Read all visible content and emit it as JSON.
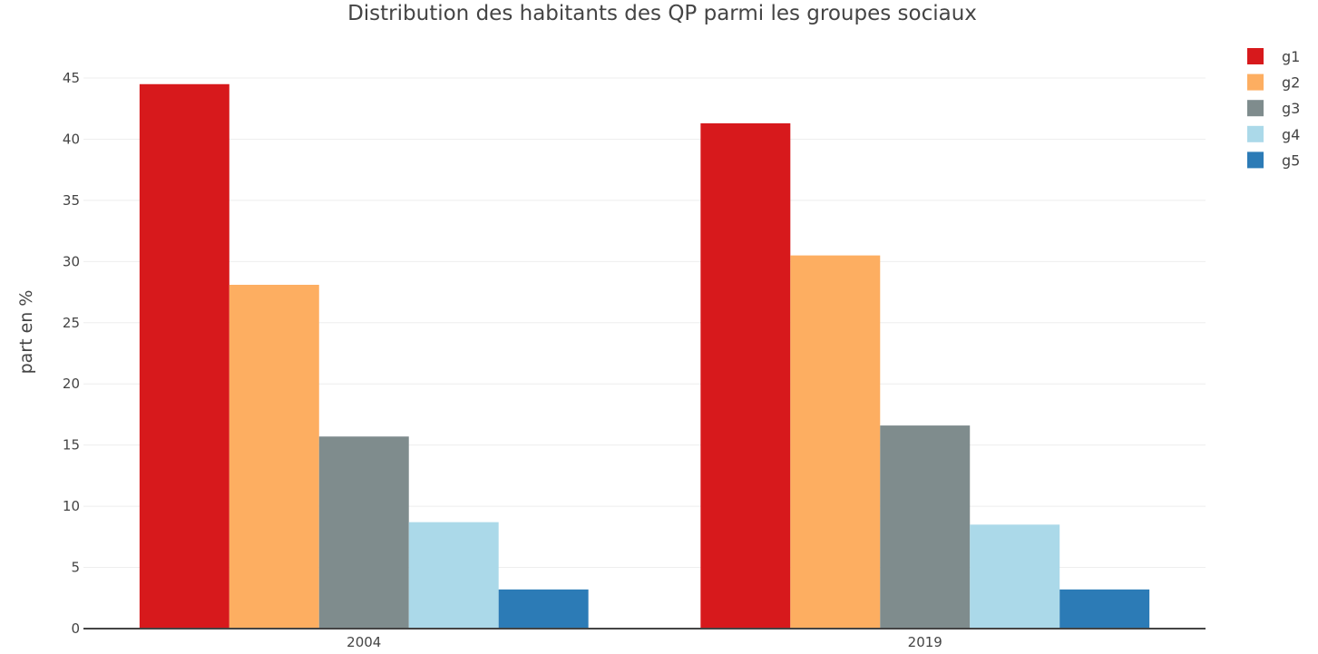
{
  "chart_data": {
    "type": "bar",
    "title": "Distribution des habitants des QP parmi les groupes sociaux",
    "xlabel": "",
    "ylabel": "part en %",
    "categories": [
      "2004",
      "2019"
    ],
    "ylim": [
      0,
      47.3
    ],
    "yticks": [
      0,
      5,
      10,
      15,
      20,
      25,
      30,
      35,
      40,
      45
    ],
    "grid": true,
    "legend_position": "top-right",
    "series": [
      {
        "name": "g1",
        "color": "#d7191c",
        "values": [
          44.5,
          41.3
        ]
      },
      {
        "name": "g2",
        "color": "#fdae61",
        "values": [
          28.1,
          30.5
        ]
      },
      {
        "name": "g3",
        "color": "#7f8c8d",
        "values": [
          15.7,
          16.6
        ]
      },
      {
        "name": "g4",
        "color": "#abd9e9",
        "values": [
          8.7,
          8.5
        ]
      },
      {
        "name": "g5",
        "color": "#2c7bb6",
        "values": [
          3.2,
          3.2
        ]
      }
    ]
  }
}
